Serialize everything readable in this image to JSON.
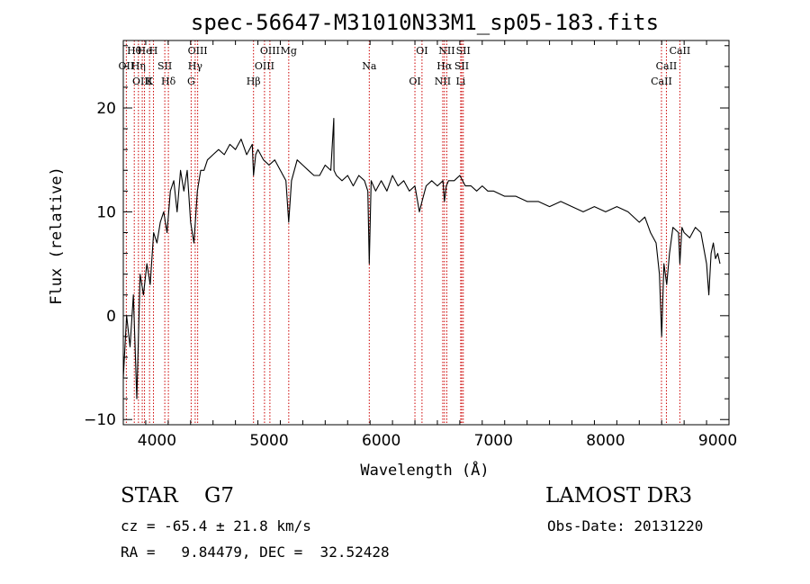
{
  "chart_data": {
    "type": "line",
    "title": "spec-56647-M31010N33M1_sp05-183.fits",
    "xlabel": "Wavelength (Å)",
    "ylabel": "Flux (relative)",
    "xlim": [
      3700,
      9100
    ],
    "ylim": [
      -10.5,
      26.5
    ],
    "xticks": [
      4000,
      5000,
      6000,
      7000,
      8000,
      9000
    ],
    "yticks": [
      -10,
      0,
      10,
      20
    ],
    "grid": false,
    "series": [
      {
        "name": "flux",
        "x": [
          3700,
          3730,
          3760,
          3790,
          3820,
          3850,
          3880,
          3910,
          3940,
          3970,
          4000,
          4030,
          4060,
          4090,
          4120,
          4150,
          4180,
          4210,
          4240,
          4270,
          4300,
          4330,
          4360,
          4390,
          4420,
          4450,
          4500,
          4550,
          4600,
          4650,
          4700,
          4750,
          4800,
          4850,
          4861,
          4880,
          4900,
          4950,
          5000,
          5050,
          5100,
          5150,
          5175,
          5200,
          5250,
          5300,
          5350,
          5400,
          5450,
          5500,
          5550,
          5577,
          5578,
          5600,
          5650,
          5700,
          5750,
          5800,
          5850,
          5880,
          5893,
          5910,
          5950,
          6000,
          6050,
          6100,
          6150,
          6200,
          6250,
          6300,
          6340,
          6363,
          6400,
          6450,
          6500,
          6550,
          6563,
          6580,
          6600,
          6650,
          6700,
          6750,
          6800,
          6850,
          6900,
          6950,
          7000,
          7100,
          7200,
          7300,
          7400,
          7500,
          7600,
          7700,
          7800,
          7900,
          8000,
          8100,
          8200,
          8300,
          8350,
          8400,
          8450,
          8480,
          8500,
          8520,
          8545,
          8570,
          8600,
          8650,
          8662,
          8680,
          8700,
          8750,
          8800,
          8850,
          8900,
          8920,
          8940,
          8960,
          8980,
          9000,
          9020
        ],
        "y": [
          -6,
          0,
          -3,
          2,
          -8,
          4,
          2,
          5,
          3,
          8,
          7,
          9,
          10,
          8,
          12,
          13,
          10,
          14,
          12,
          14,
          9,
          7,
          12,
          14,
          14,
          15,
          15.5,
          16,
          15.5,
          16.5,
          16,
          17,
          15.5,
          16.5,
          13.5,
          15.5,
          16,
          15,
          14.5,
          15,
          14,
          13,
          9,
          13,
          15,
          14.5,
          14,
          13.5,
          13.5,
          14.5,
          14,
          19,
          14,
          13.5,
          13,
          13.5,
          12.5,
          13.5,
          13,
          12,
          5,
          13,
          12,
          13,
          12,
          13.5,
          12.5,
          13,
          12,
          12.5,
          10,
          11,
          12.5,
          13,
          12.5,
          13,
          11,
          12.5,
          13,
          13,
          13.5,
          12.5,
          12.5,
          12,
          12.5,
          12,
          12,
          11.5,
          11.5,
          11,
          11,
          10.5,
          11,
          10.5,
          10,
          10.5,
          10,
          10.5,
          10,
          9,
          9.5,
          8,
          7,
          4,
          -2,
          5,
          3,
          6,
          8.5,
          8,
          5,
          8.5,
          8,
          7.5,
          8.5,
          8,
          5,
          2,
          6,
          7,
          5.5,
          6,
          5
        ]
      }
    ],
    "lines": [
      {
        "label": "Hθ",
        "x": 3798
      },
      {
        "label": "OII",
        "x": 3727
      },
      {
        "label": "OIII",
        "x": 3869
      },
      {
        "label": "He",
        "x": 3889
      },
      {
        "label": "Hη",
        "x": 3835
      },
      {
        "label": "K",
        "x": 3934
      },
      {
        "label": "H",
        "x": 3969
      },
      {
        "label": "SII",
        "x": 4070
      },
      {
        "label": "Hδ",
        "x": 4102
      },
      {
        "label": "OIII",
        "x": 4363
      },
      {
        "label": "Hγ",
        "x": 4341
      },
      {
        "label": "G",
        "x": 4305
      },
      {
        "label": "OIII",
        "x": 5007
      },
      {
        "label": "OIII",
        "x": 4959
      },
      {
        "label": "Hβ",
        "x": 4861
      },
      {
        "label": "Mg",
        "x": 5175
      },
      {
        "label": "Na",
        "x": 5893
      },
      {
        "label": "OI",
        "x": 6300
      },
      {
        "label": "OI",
        "x": 6363
      },
      {
        "label": "Hα",
        "x": 6563
      },
      {
        "label": "NII",
        "x": 6548
      },
      {
        "label": "NII",
        "x": 6584
      },
      {
        "label": "SII",
        "x": 6717
      },
      {
        "label": "Li",
        "x": 6708
      },
      {
        "label": "SII",
        "x": 6731
      },
      {
        "label": "CaII",
        "x": 8542
      },
      {
        "label": "CaII",
        "x": 8498
      },
      {
        "label": "CaII",
        "x": 8662
      }
    ]
  },
  "info": {
    "class_line": "STAR    G7",
    "cz_line": "cz = -65.4 ± 21.8 km/s",
    "radec_line": "RA =   9.84479, DEC =  32.52428",
    "survey": "LAMOST DR3",
    "obs_date": "Obs-Date: 20131220"
  },
  "colors": {
    "spectrum": "#000000",
    "line_marker": "#cc0000",
    "axes": "#000000"
  }
}
